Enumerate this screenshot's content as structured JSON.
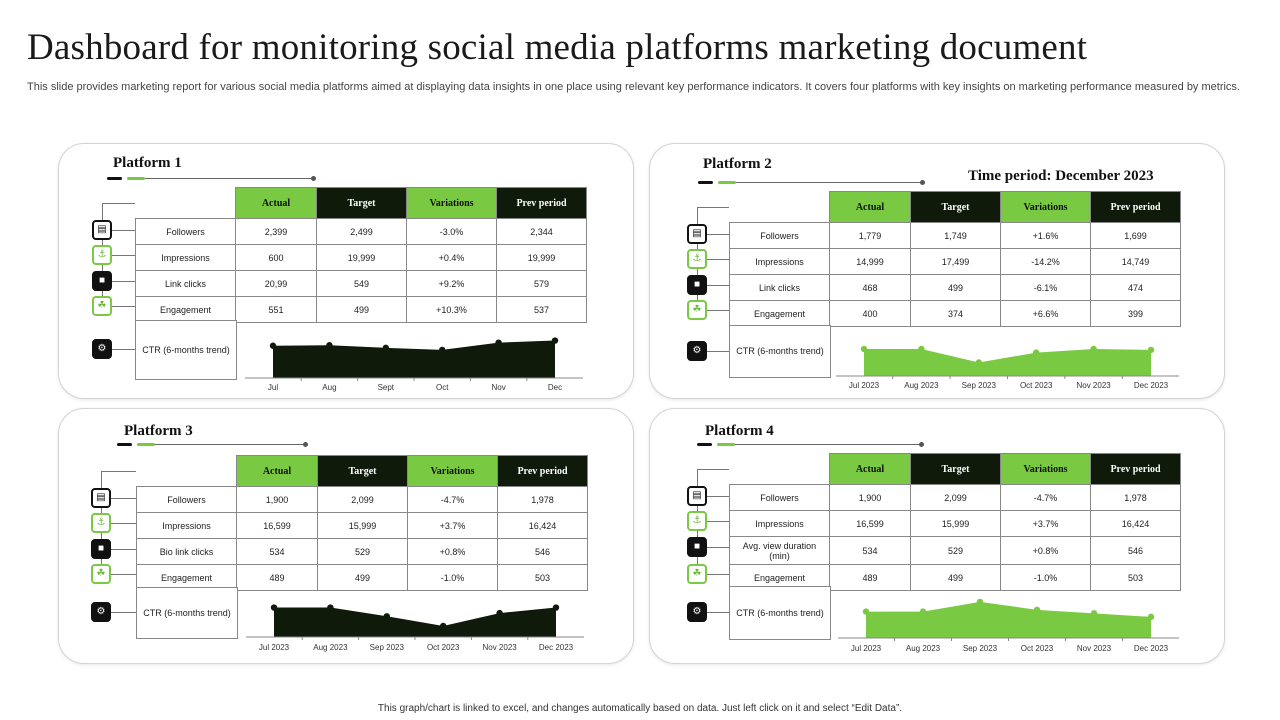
{
  "title": "Dashboard for monitoring social media platforms marketing document",
  "subtitle": "This slide provides marketing report for various social media platforms aimed at displaying data insights in one place using relevant key performance indicators. It covers four platforms with key insights on marketing performance measured by metrics.",
  "footer": "This graph/chart is linked to excel, and changes automatically based on data. Just left click on it and select “Edit Data”.",
  "time_period": "Time period:  December 2023",
  "colors": {
    "accent_green": "#7ac943",
    "dark": "#0f1a0b"
  },
  "table_headers": [
    "Actual",
    "Target",
    "Variations",
    "Prev period"
  ],
  "platforms": [
    {
      "name": "Platform  1",
      "rows": [
        [
          "Followers",
          "2,399",
          "2,499",
          "-3.0%",
          "2,344"
        ],
        [
          "Impressions",
          "600",
          "19,999",
          "+0.4%",
          "19,999"
        ],
        [
          "Link clicks",
          "20,99",
          "549",
          "+9.2%",
          "579"
        ],
        [
          "Engagement",
          "551",
          "499",
          "+10.3%",
          "537"
        ]
      ],
      "ctr_label": "CTR (6-months trend)",
      "trend_months": [
        "Jul",
        "Aug",
        "Sept",
        "Oct",
        "Nov",
        "Dec"
      ],
      "trend_values": [
        62,
        63,
        58,
        54,
        68,
        72
      ],
      "trend_color": "#0f1a0b"
    },
    {
      "name": "Platform  2",
      "rows": [
        [
          "Followers",
          "1,779",
          "1,749",
          "+1.6%",
          "1,699"
        ],
        [
          "Impressions",
          "14,999",
          "17,499",
          "-14.2%",
          "14,749"
        ],
        [
          "Link clicks",
          "468",
          "499",
          "-6.1%",
          "474"
        ],
        [
          "Engagement",
          "400",
          "374",
          "+6.6%",
          "399"
        ]
      ],
      "ctr_label": "CTR (6-months trend)",
      "trend_months": [
        "Jul 2023",
        "Aug 2023",
        "Sep 2023",
        "Oct 2023",
        "Nov 2023",
        "Dec 2023"
      ],
      "trend_values": [
        60,
        60,
        30,
        52,
        60,
        58
      ],
      "trend_color": "#7ac943"
    },
    {
      "name": "Platform  3",
      "rows": [
        [
          "Followers",
          "1,900",
          "2,099",
          "-4.7%",
          "1,978"
        ],
        [
          "Impressions",
          "16,599",
          "15,999",
          "+3.7%",
          "16,424"
        ],
        [
          "Bio link clicks",
          "534",
          "529",
          "+0.8%",
          "546"
        ],
        [
          "Engagement",
          "489",
          "499",
          "-1.0%",
          "503"
        ]
      ],
      "ctr_label": "CTR (6-months trend)",
      "trend_months": [
        "Jul 2023",
        "Aug 2023",
        "Sep 2023",
        "Oct 2023",
        "Nov 2023",
        "Dec 2023"
      ],
      "trend_values": [
        64,
        64,
        45,
        24,
        52,
        64
      ],
      "trend_color": "#0f1a0b"
    },
    {
      "name": "Platform  4",
      "rows": [
        [
          "Followers",
          "1,900",
          "2,099",
          "-4.7%",
          "1,978"
        ],
        [
          "Impressions",
          "16,599",
          "15,999",
          "+3.7%",
          "16,424"
        ],
        [
          "Avg. view duration (min)",
          "534",
          "529",
          "+0.8%",
          "546"
        ],
        [
          "Engagement",
          "489",
          "499",
          "-1.0%",
          "503"
        ]
      ],
      "ctr_label": "CTR (6-months trend)",
      "trend_months": [
        "Jul 2023",
        "Aug 2023",
        "Sep 2023",
        "Oct 2023",
        "Nov 2023",
        "Dec 2023"
      ],
      "trend_values": [
        60,
        60,
        82,
        64,
        56,
        48
      ],
      "trend_color": "#7ac943"
    }
  ]
}
